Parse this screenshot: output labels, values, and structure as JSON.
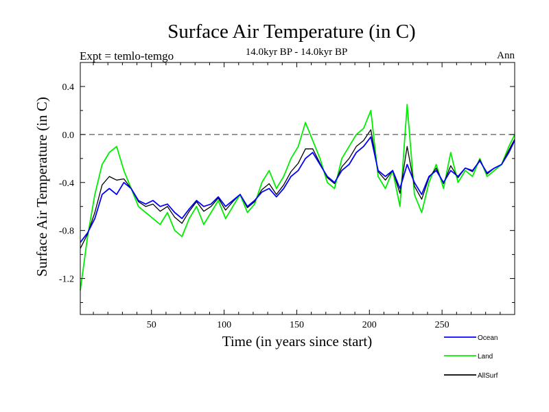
{
  "chart_data": {
    "type": "line",
    "title": "Surface Air Temperature (in C)",
    "subtitle": "14.0kyr BP - 14.0kyr BP",
    "left_label": "Expt = temlo-temgo",
    "right_label": "Ann",
    "xlabel": "Time (in years since start)",
    "ylabel": "Surface Air Temperature (in C)",
    "xlim": [
      1,
      300
    ],
    "ylim": [
      -1.5,
      0.6
    ],
    "x_ticks": [
      50,
      100,
      150,
      200,
      250
    ],
    "x_tick_labels": [
      "50",
      "100",
      "150",
      "200",
      "250"
    ],
    "y_ticks": [
      -1.2,
      -0.8,
      -0.4,
      0.0,
      0.4
    ],
    "y_tick_labels": [
      "-1.2",
      "-0.8",
      "-0.4",
      "0.0",
      "0.4"
    ],
    "reference_line": {
      "y": 0.0,
      "style": "dashed"
    },
    "legend_position": "bottom-right",
    "x_step": 5,
    "series": [
      {
        "name": "Ocean",
        "color": "#0000ff",
        "values": [
          -0.9,
          -0.82,
          -0.7,
          -0.5,
          -0.45,
          -0.5,
          -0.4,
          -0.45,
          -0.55,
          -0.58,
          -0.55,
          -0.6,
          -0.58,
          -0.65,
          -0.7,
          -0.62,
          -0.55,
          -0.6,
          -0.58,
          -0.52,
          -0.6,
          -0.55,
          -0.5,
          -0.6,
          -0.55,
          -0.48,
          -0.45,
          -0.52,
          -0.45,
          -0.35,
          -0.3,
          -0.2,
          -0.15,
          -0.25,
          -0.35,
          -0.4,
          -0.3,
          -0.25,
          -0.15,
          -0.1,
          -0.02,
          -0.3,
          -0.35,
          -0.3,
          -0.45,
          -0.25,
          -0.4,
          -0.5,
          -0.35,
          -0.3,
          -0.4,
          -0.3,
          -0.35,
          -0.28,
          -0.3,
          -0.22,
          -0.32,
          -0.28,
          -0.25,
          -0.15,
          -0.05
        ]
      },
      {
        "name": "Land",
        "color": "#00ee00",
        "values": [
          -1.3,
          -0.85,
          -0.5,
          -0.25,
          -0.15,
          -0.1,
          -0.3,
          -0.45,
          -0.6,
          -0.65,
          -0.7,
          -0.75,
          -0.65,
          -0.8,
          -0.85,
          -0.7,
          -0.6,
          -0.75,
          -0.65,
          -0.55,
          -0.7,
          -0.6,
          -0.5,
          -0.65,
          -0.58,
          -0.4,
          -0.3,
          -0.45,
          -0.35,
          -0.2,
          -0.1,
          0.1,
          -0.05,
          -0.2,
          -0.4,
          -0.45,
          -0.2,
          -0.1,
          0.0,
          0.05,
          0.2,
          -0.35,
          -0.45,
          -0.3,
          -0.6,
          0.25,
          -0.5,
          -0.65,
          -0.4,
          -0.25,
          -0.45,
          -0.15,
          -0.4,
          -0.3,
          -0.35,
          -0.2,
          -0.35,
          -0.3,
          -0.25,
          -0.1,
          0.0
        ]
      },
      {
        "name": "AllSurf",
        "color": "#000000",
        "values": [
          -0.95,
          -0.83,
          -0.65,
          -0.42,
          -0.35,
          -0.38,
          -0.37,
          -0.45,
          -0.56,
          -0.6,
          -0.58,
          -0.64,
          -0.6,
          -0.69,
          -0.74,
          -0.64,
          -0.56,
          -0.64,
          -0.6,
          -0.53,
          -0.63,
          -0.56,
          -0.5,
          -0.61,
          -0.56,
          -0.46,
          -0.41,
          -0.5,
          -0.42,
          -0.31,
          -0.24,
          -0.12,
          -0.12,
          -0.24,
          -0.36,
          -0.41,
          -0.27,
          -0.2,
          -0.1,
          -0.05,
          0.04,
          -0.31,
          -0.38,
          -0.3,
          -0.49,
          -0.1,
          -0.43,
          -0.54,
          -0.36,
          -0.28,
          -0.41,
          -0.26,
          -0.36,
          -0.28,
          -0.31,
          -0.21,
          -0.33,
          -0.28,
          -0.25,
          -0.13,
          -0.04
        ]
      }
    ]
  }
}
